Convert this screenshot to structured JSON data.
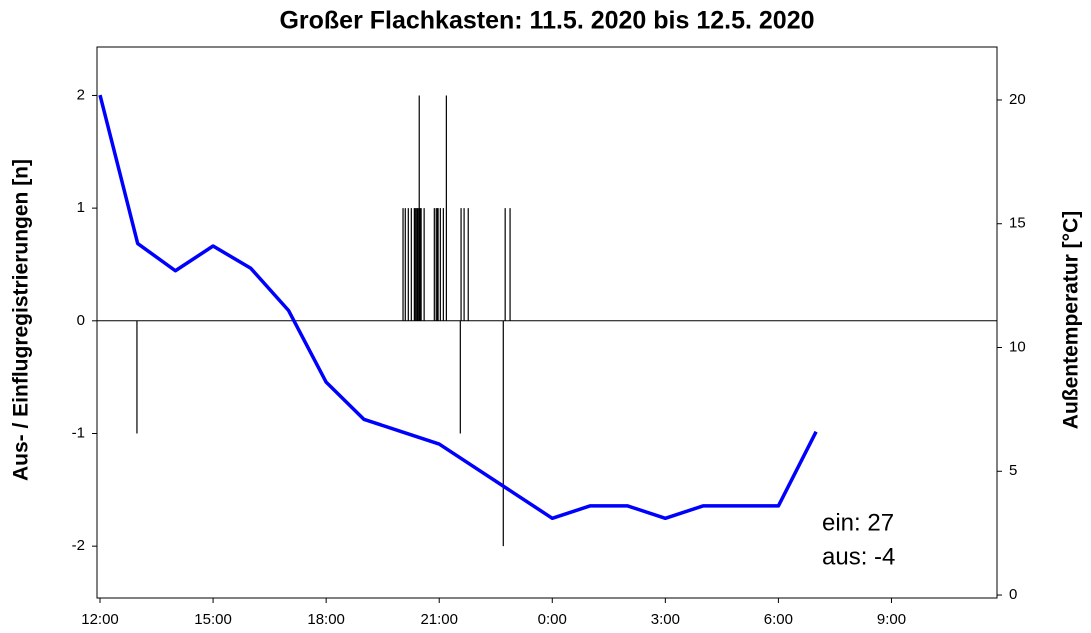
{
  "chart_data": {
    "type": "combo",
    "title": "Großer Flachkasten: 11.5. 2020 bis 12.5. 2020",
    "ylabel": "Aus- / Einflugregistrierungen [n]",
    "y2label": "Außentemperatur [°C]",
    "annotations": [
      "ein: 27",
      "aus: -4"
    ],
    "xlim": [
      -0.08,
      23.8
    ],
    "xticks": [
      {
        "value": 0,
        "label": "12:00"
      },
      {
        "value": 3,
        "label": "15:00"
      },
      {
        "value": 6,
        "label": "18:00"
      },
      {
        "value": 9,
        "label": "21:00"
      },
      {
        "value": 12,
        "label": "0:00"
      },
      {
        "value": 15,
        "label": "3:00"
      },
      {
        "value": 18,
        "label": "6:00"
      },
      {
        "value": 21,
        "label": "9:00"
      }
    ],
    "ylim": [
      -2.46,
      2.43
    ],
    "yticks": [
      -2,
      -1,
      0,
      1,
      2
    ],
    "y2lim": [
      -0.12,
      22.14
    ],
    "y2ticks": [
      0,
      5,
      10,
      15,
      20
    ],
    "series": [
      {
        "type": "bar",
        "color": "#000000",
        "x": [
          0.98,
          8.04,
          8.1,
          8.18,
          8.26,
          8.34,
          8.36,
          8.39,
          8.42,
          8.44,
          8.47,
          8.49,
          8.52,
          8.6,
          8.87,
          8.92,
          8.95,
          8.97,
          9.03,
          9.11,
          9.19,
          9.56,
          9.58,
          9.66,
          9.77,
          10.7,
          10.75,
          10.88
        ],
        "values": [
          -1,
          1,
          1,
          1,
          1,
          1,
          1,
          1,
          1,
          1,
          2,
          1,
          1,
          1,
          1,
          1,
          1,
          1,
          1,
          1,
          2,
          -1,
          1,
          1,
          1,
          -2,
          1,
          1
        ]
      },
      {
        "type": "line",
        "axis": "y2",
        "color": "#0000ff",
        "x": [
          0,
          1,
          2,
          3,
          4,
          5,
          6,
          7,
          8,
          9,
          10,
          11,
          12,
          13,
          14,
          15,
          16,
          17,
          18,
          19
        ],
        "values": [
          20.2,
          14.2,
          13.1,
          14.1,
          13.2,
          11.5,
          8.6,
          7.1,
          6.6,
          6.1,
          5.1,
          4.1,
          3.1,
          3.6,
          3.6,
          3.1,
          3.6,
          3.6,
          3.6,
          6.6
        ]
      }
    ]
  }
}
